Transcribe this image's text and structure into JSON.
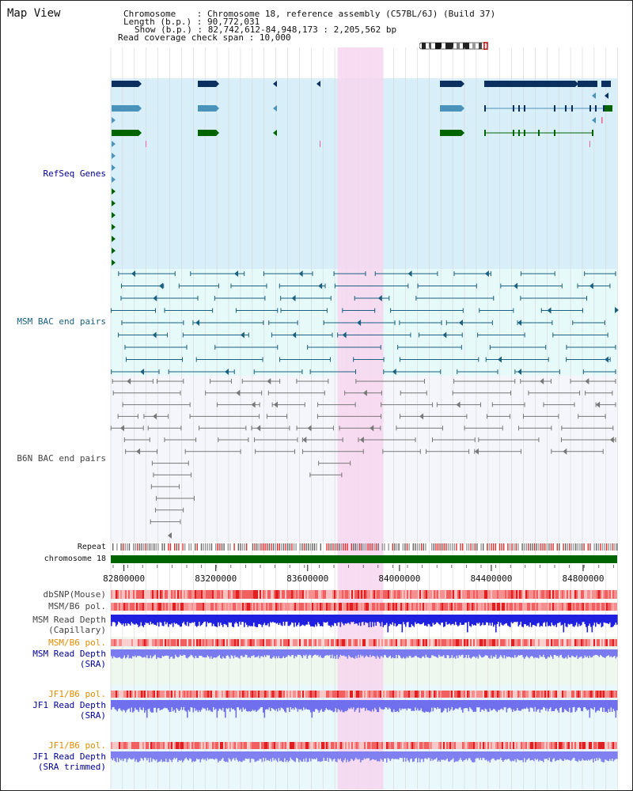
{
  "header": {
    "title": "Map View",
    "chromosome_label": "Chromosome",
    "chromosome_value": "Chromosome 18, reference assembly (C57BL/6J) (Build 37)",
    "length_label": "Length (b.p.)",
    "length_value": "90,772,031",
    "show_label": "Show (b.p.)",
    "show_value": "82,742,612-84,948,173 : 2,205,562 bp",
    "coverage_label": "Read coverage check span",
    "coverage_value": "10,000"
  },
  "tracks": {
    "refseq": "RefSeq Genes",
    "msm_bac": "MSM BAC end pairs",
    "b6n_bac": "B6N BAC end pairs",
    "repeat": "Repeat",
    "chromosome": "chromosome 18",
    "dbsnp": "dbSNP(Mouse)",
    "msm_b6_pol_1": "MSM/B6 pol.",
    "msm_depth_cap_1": "MSM Read Depth",
    "msm_depth_cap_2": "(Capillary)",
    "msm_b6_pol_2": "MSM/B6 pol.",
    "msm_depth_sra_1": "MSM Read Depth",
    "msm_depth_sra_2": "(SRA)",
    "jf1_b6_pol_1": "JF1/B6 pol.",
    "jf1_depth_sra_1": "JF1 Read Depth",
    "jf1_depth_sra_2": "(SRA)",
    "jf1_b6_pol_2": "JF1/B6 pol.",
    "jf1_depth_trim_1": "JF1 Read Depth",
    "jf1_depth_trim_2": "(SRA trimmed)"
  },
  "axis": {
    "ticks": [
      "82800000",
      "83200000",
      "83600000",
      "84000000",
      "84400000",
      "84800000"
    ],
    "tick_values": [
      82800000,
      83200000,
      83600000,
      84000000,
      84400000,
      84800000
    ],
    "range": [
      82742612,
      84948173
    ],
    "highlight_range": [
      83730000,
      83930000
    ]
  },
  "colors": {
    "refseq_bg": "#d8eef9",
    "msm_bg": "#e6fafa",
    "b6n_bg": "#f4f6fb",
    "highlight": "#f7d6ef",
    "gene_dark": "#0b3060",
    "gene_mid": "#4a94bb",
    "gene_green": "#006400",
    "msm_line": "#1a6080",
    "b6n_line": "#777777",
    "chromosome": "#006400",
    "label_blue": "#000099",
    "label_orange": "#e08c00",
    "label_teal": "#1a6080",
    "label_gray": "#444444"
  }
}
